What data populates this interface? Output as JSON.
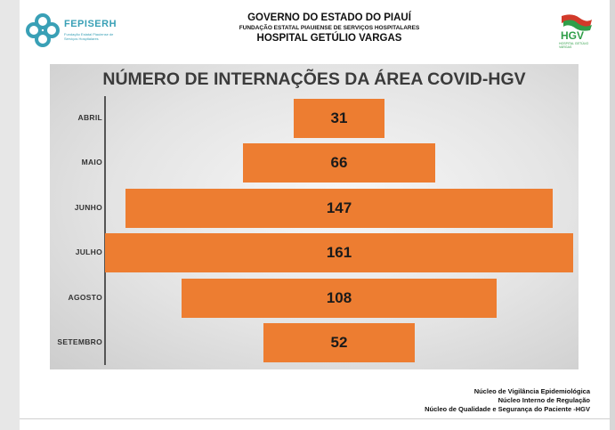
{
  "header": {
    "line1": "GOVERNO DO ESTADO DO PIAUÍ",
    "line2": "FUNDAÇÃO ESTATAL PIAUIENSE DE SERVIÇOS HOSPITALARES",
    "line3": "HOSPITAL GETÚLIO VARGAS"
  },
  "logos": {
    "left_brand": "FEPISERH",
    "left_sub": "Fundação Estatal Piauiense de Serviços Hospitalares",
    "right_brand": "HGV",
    "right_sub": "HOSPITAL GETÚLIO VARGAS"
  },
  "chart_data": {
    "type": "bar",
    "orientation": "horizontal-centered",
    "title": "NÚMERO DE INTERNAÇÕES DA ÁREA COVID-HGV",
    "categories": [
      "ABRIL",
      "MAIO",
      "JUNHO",
      "JULHO",
      "AGOSTO",
      "SETEMBRO"
    ],
    "values": [
      31,
      66,
      147,
      161,
      108,
      52
    ],
    "value_labels": [
      "31",
      "66",
      "147",
      "161",
      "108",
      "52"
    ],
    "xlabel": "",
    "ylabel": "",
    "grid": false,
    "legend": "none",
    "bar_color": "#ed7d31"
  },
  "footer": {
    "line1": "Núcleo de Vigilância Epidemiológica",
    "line2": "Núcleo Interno de Regulação",
    "line3": "Núcleo de Qualidade e Segurança do Paciente -HGV"
  },
  "colors": {
    "accent_orange": "#ed7d31",
    "fepiserh_teal": "#39a0b6",
    "hgv_green": "#2f9e48",
    "hgv_red": "#d23a2a"
  }
}
